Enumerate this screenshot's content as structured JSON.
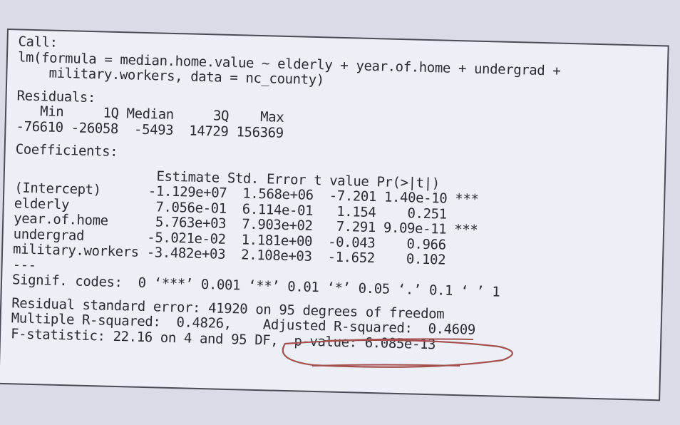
{
  "call": {
    "header": "Call:",
    "line1": "lm(formula = median.home.value ~ elderly + year.of.home + undergrad +",
    "line2": "    military.workers, data = nc_county)"
  },
  "residuals": {
    "header": "Residuals:",
    "labels": "   Min     1Q Median     3Q    Max ",
    "values": "-76610 -26058  -5493  14729 156369 "
  },
  "coefficients": {
    "header": "Coefficients:",
    "columns": "                  Estimate Std. Error t value Pr(>|t|)    ",
    "rows": [
      "(Intercept)      -1.129e+07  1.568e+06  -7.201 1.40e-10 ***",
      "elderly           7.056e-01  6.114e-01   1.154    0.251    ",
      "year.of.home      5.763e+03  7.903e+02   7.291 9.09e-11 ***",
      "undergrad        -5.021e-02  1.181e+00  -0.043    0.966    ",
      "military.workers -3.482e+03  2.108e+03  -1.652    0.102    "
    ],
    "separator": "---",
    "signif": "Signif. codes:  0 ‘***’ 0.001 ‘**’ 0.01 ‘*’ 0.05 ‘.’ 0.1 ‘ ’ 1"
  },
  "summary": {
    "rse": "Residual standard error: 41920 on 95 degrees of freedom",
    "r2": "Multiple R-squared:  0.4826,\tAdjusted R-squared:  0.4609 ",
    "f": "F-statistic: 22.16 on 4 and 95 DF,  p-value: 6.085e-13"
  },
  "annotation_color": "#a5504e"
}
